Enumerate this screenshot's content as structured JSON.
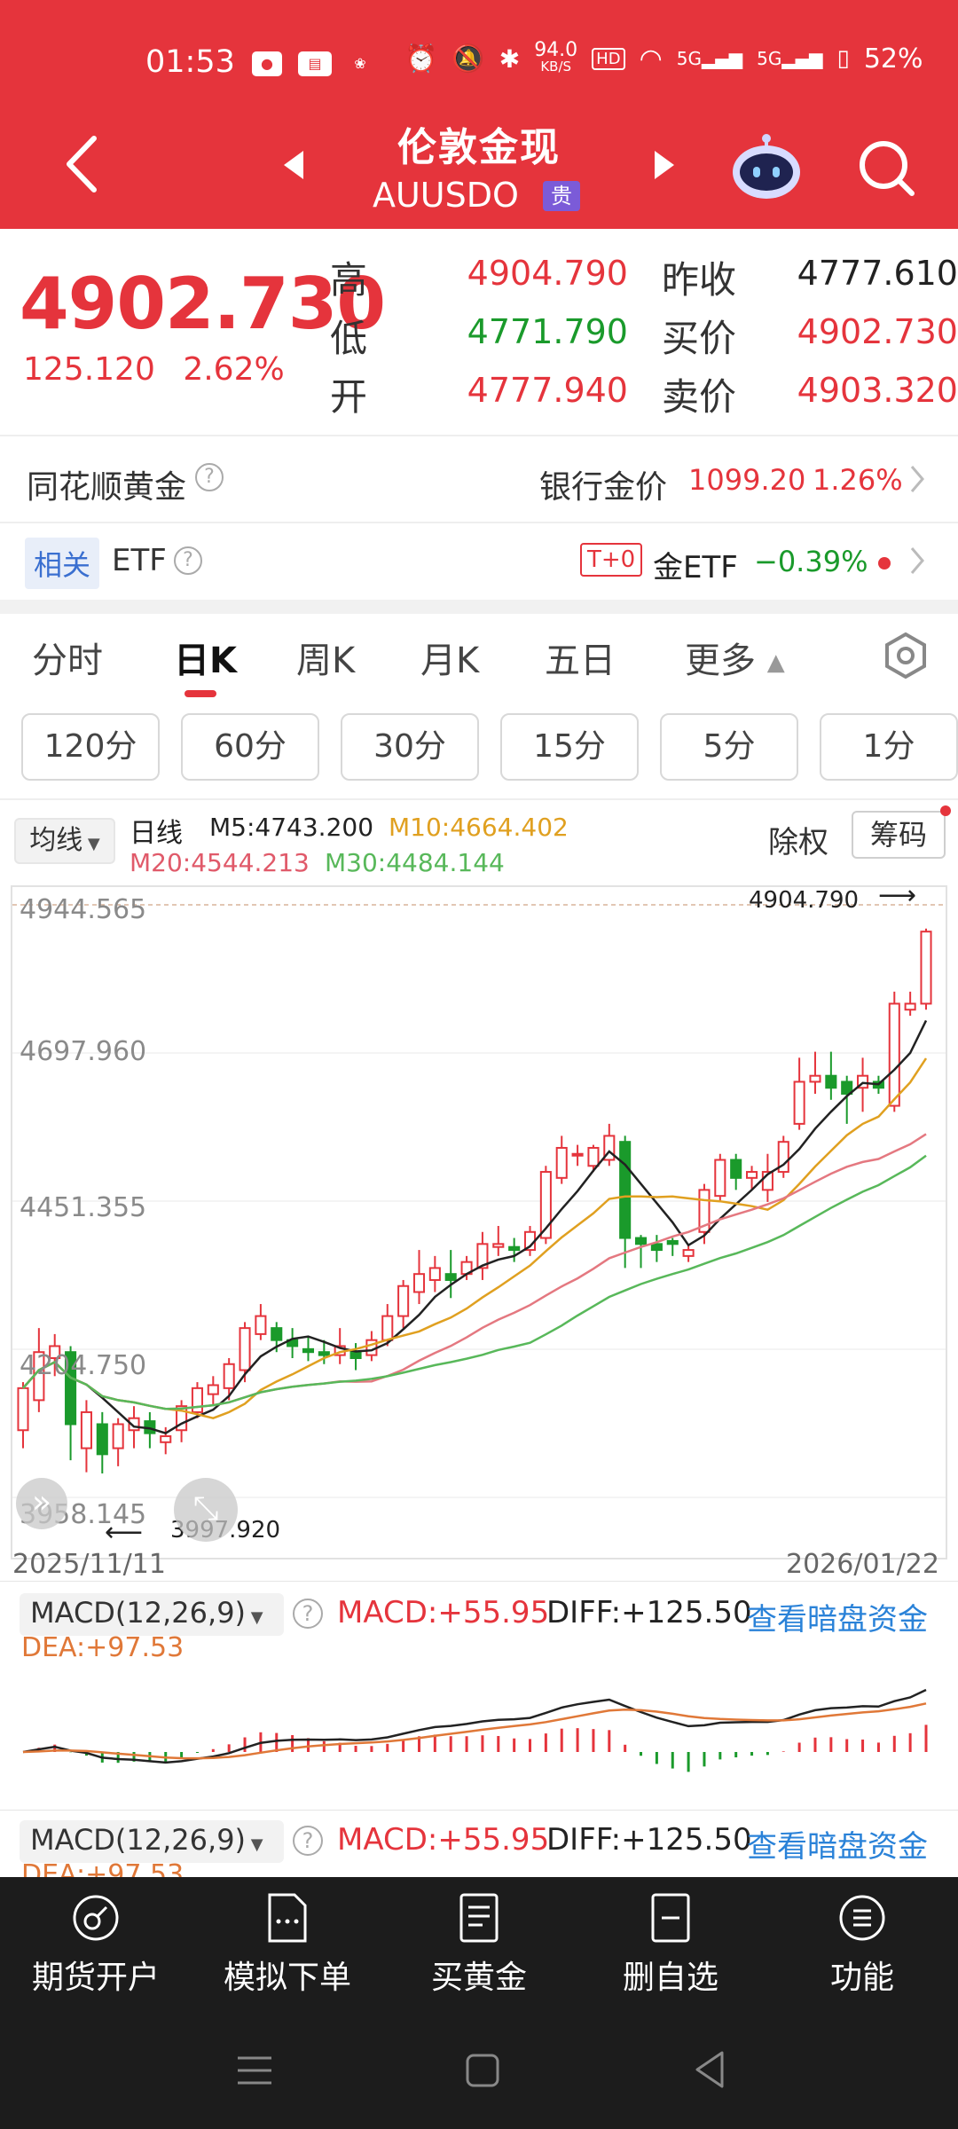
{
  "status_bar": {
    "time": "01:53",
    "net_speed_top": "94.0",
    "net_speed_unit": "KB/S",
    "battery": "52%"
  },
  "header": {
    "title": "伦敦金现",
    "code": "AUUSDO",
    "tag": "贵"
  },
  "quote": {
    "price": "4902.730",
    "change": "125.120",
    "change_pct": "2.62%",
    "labels": {
      "high": "高",
      "low": "低",
      "open": "开",
      "prev_close": "昨收",
      "bid": "买价",
      "ask": "卖价"
    },
    "high": "4904.790",
    "low": "4771.790",
    "open": "4777.940",
    "prev_close": "4777.610",
    "bid": "4902.730",
    "ask": "4903.320"
  },
  "gold_row": {
    "label": "同花顺黄金",
    "bank_label": "银行金价",
    "bank_price": "1099.20",
    "bank_pct": "1.26%"
  },
  "etf_row": {
    "tag": "相关",
    "label": "ETF",
    "t0": "T+0",
    "etf_name": "金ETF",
    "etf_pct": "−0.39%"
  },
  "tabs": [
    "分时",
    "日K",
    "周K",
    "月K",
    "五日",
    "更多"
  ],
  "active_tab": "日K",
  "periods": [
    "120分",
    "60分",
    "30分",
    "15分",
    "5分",
    "1分"
  ],
  "ma": {
    "select": "均线",
    "period": "日线",
    "m5": "M5:4743.200",
    "m10": "M10:4664.402",
    "m20": "M20:4544.213",
    "m30": "M30:4484.144",
    "exright": "除权",
    "chips": "筹码"
  },
  "chart_data": {
    "type": "candlestick",
    "y_ticks": [
      "4944.565",
      "4697.960",
      "4451.355",
      "4204.750",
      "3958.145"
    ],
    "ylim": [
      3958.145,
      4944.565
    ],
    "max_label": "4904.790",
    "min_label": "3997.920",
    "x_start": "2025/11/11",
    "x_end": "2026/01/22",
    "candles": [
      [
        4070,
        4140,
        4040,
        4150
      ],
      [
        4120,
        4200,
        4100,
        4240
      ],
      [
        4190,
        4210,
        4160,
        4230
      ],
      [
        4200,
        4080,
        4020,
        4210
      ],
      [
        4040,
        4100,
        4000,
        4120
      ],
      [
        4080,
        4030,
        3998,
        4100
      ],
      [
        4040,
        4080,
        4010,
        4090
      ],
      [
        4070,
        4090,
        4040,
        4110
      ],
      [
        4085,
        4065,
        4040,
        4100
      ],
      [
        4050,
        4060,
        4030,
        4075
      ],
      [
        4070,
        4110,
        4050,
        4120
      ],
      [
        4100,
        4140,
        4090,
        4150
      ],
      [
        4130,
        4145,
        4110,
        4160
      ],
      [
        4140,
        4180,
        4120,
        4190
      ],
      [
        4170,
        4240,
        4150,
        4250
      ],
      [
        4230,
        4260,
        4220,
        4280
      ],
      [
        4240,
        4220,
        4200,
        4250
      ],
      [
        4220,
        4210,
        4190,
        4240
      ],
      [
        4205,
        4200,
        4185,
        4225
      ],
      [
        4200,
        4195,
        4180,
        4220
      ],
      [
        4195,
        4210,
        4180,
        4240
      ],
      [
        4200,
        4190,
        4170,
        4215
      ],
      [
        4195,
        4220,
        4185,
        4235
      ],
      [
        4220,
        4260,
        4210,
        4280
      ],
      [
        4260,
        4310,
        4240,
        4320
      ],
      [
        4300,
        4330,
        4280,
        4370
      ],
      [
        4320,
        4340,
        4300,
        4360
      ],
      [
        4330,
        4320,
        4290,
        4370
      ],
      [
        4330,
        4350,
        4320,
        4360
      ],
      [
        4340,
        4380,
        4320,
        4400
      ],
      [
        4375,
        4380,
        4360,
        4410
      ],
      [
        4375,
        4370,
        4350,
        4390
      ],
      [
        4370,
        4400,
        4360,
        4410
      ],
      [
        4390,
        4500,
        4380,
        4510
      ],
      [
        4490,
        4540,
        4480,
        4560
      ],
      [
        4530,
        4530,
        4510,
        4545
      ],
      [
        4510,
        4540,
        4500,
        4545
      ],
      [
        4520,
        4560,
        4510,
        4580
      ],
      [
        4550,
        4390,
        4340,
        4560
      ],
      [
        4390,
        4380,
        4340,
        4395
      ],
      [
        4380,
        4370,
        4350,
        4395
      ],
      [
        4385,
        4380,
        4360,
        4390
      ],
      [
        4360,
        4370,
        4350,
        4380
      ],
      [
        4400,
        4470,
        4380,
        4480
      ],
      [
        4460,
        4520,
        4450,
        4530
      ],
      [
        4520,
        4490,
        4470,
        4530
      ],
      [
        4490,
        4500,
        4470,
        4510
      ],
      [
        4470,
        4500,
        4450,
        4530
      ],
      [
        4500,
        4550,
        4490,
        4560
      ],
      [
        4580,
        4650,
        4570,
        4690
      ],
      [
        4650,
        4660,
        4630,
        4700
      ],
      [
        4660,
        4640,
        4620,
        4700
      ],
      [
        4650,
        4630,
        4580,
        4660
      ],
      [
        4640,
        4660,
        4600,
        4690
      ],
      [
        4650,
        4640,
        4630,
        4660
      ],
      [
        4610,
        4780,
        4600,
        4800
      ],
      [
        4770,
        4780,
        4760,
        4800
      ],
      [
        4780,
        4900,
        4770,
        4905
      ]
    ],
    "series_names": [
      "M5",
      "M10",
      "M20",
      "M30"
    ]
  },
  "macd": {
    "select": "MACD(12,26,9)",
    "macd": "MACD:+55.95",
    "diff": "DIFF:+125.50",
    "dea": "DEA:+97.53",
    "link": "查看暗盘资金"
  },
  "bottom_nav": [
    "期货开户",
    "模拟下单",
    "买黄金",
    "删自选",
    "功能"
  ],
  "colors": {
    "brand": "#e5343c",
    "up": "#e5343c",
    "down": "#1a9a2b",
    "m5": "#222222",
    "m10": "#e0a020",
    "m20": "#e47880",
    "m30": "#58b85a"
  }
}
